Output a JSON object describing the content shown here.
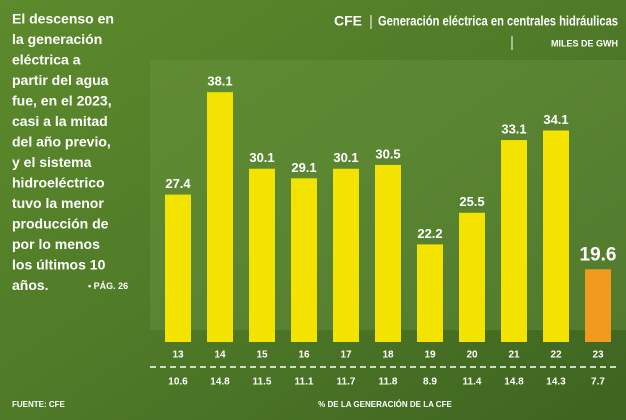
{
  "chart_data": {
    "type": "bar",
    "source_org": "CFE",
    "title": "Generación eléctrica en centrales hidráulicas",
    "unit": "MILES DE GWH",
    "description_lines": [
      "El descenso en",
      "la generación",
      "eléctrica a",
      "partir del agua",
      "fue, en el 2023,",
      "casi a la mitad",
      "del año previo,",
      "y el sistema",
      "hidroeléctrico",
      "tuvo la menor",
      "producción de",
      "por lo menos",
      "los últimos 10",
      "años."
    ],
    "page_ref": "• PÁG. 26",
    "categories": [
      "13",
      "14",
      "15",
      "16",
      "17",
      "18",
      "19",
      "20",
      "21",
      "22",
      "23"
    ],
    "values": [
      27.4,
      38.1,
      30.1,
      29.1,
      30.1,
      30.5,
      22.2,
      25.5,
      33.1,
      34.1,
      19.6
    ],
    "colors": [
      "#f4e200",
      "#f4e200",
      "#f4e200",
      "#f4e200",
      "#f4e200",
      "#f4e200",
      "#f4e200",
      "#f4e200",
      "#f4e200",
      "#f4e200",
      "#f29a1e"
    ],
    "ylim": [
      12,
      40
    ],
    "shares": [
      10.6,
      14.8,
      11.5,
      11.1,
      11.7,
      11.8,
      8.9,
      11.4,
      14.8,
      14.3,
      7.7
    ],
    "shares_label": "% DE LA GENERACIÓN DE LA CFE",
    "source": "FUENTE: CFE"
  }
}
